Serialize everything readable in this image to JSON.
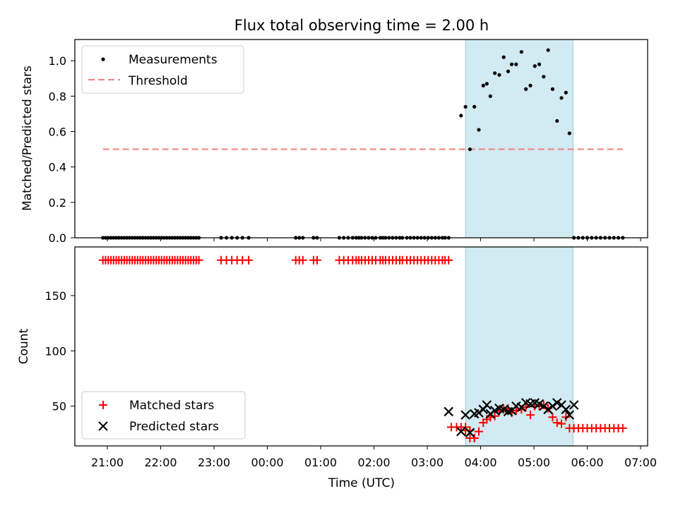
{
  "chart_data": {
    "title": "Flux total observing time = 2.00 h",
    "xlabel": "Time (UTC)",
    "x_ticks": [
      "21:00",
      "22:00",
      "23:00",
      "00:00",
      "01:00",
      "02:00",
      "03:00",
      "04:00",
      "05:00",
      "06:00",
      "07:00"
    ],
    "shaded_interval": {
      "from": "03:43",
      "to": "05:44",
      "color": "#add8e6"
    },
    "panels": [
      {
        "type": "scatter",
        "ylabel": "Matched/Predicted stars",
        "ylim": [
          0,
          1.12
        ],
        "y_ticks": [
          0.0,
          0.2,
          0.4,
          0.6,
          0.8,
          1.0
        ],
        "y_tick_labels": [
          "0.0",
          "0.2",
          "0.4",
          "0.6",
          "0.8",
          "1.0"
        ],
        "legend_position": "upper-left",
        "series": [
          {
            "name": "Measurements",
            "kind": "points",
            "color": "#000000",
            "x": [
              "20:55",
              "20:58",
              "21:01",
              "21:04",
              "21:07",
              "21:10",
              "21:13",
              "21:16",
              "21:19",
              "21:22",
              "21:25",
              "21:28",
              "21:31",
              "21:34",
              "21:37",
              "21:40",
              "21:43",
              "21:46",
              "21:49",
              "21:52",
              "21:55",
              "21:58",
              "22:01",
              "22:04",
              "22:07",
              "22:10",
              "22:13",
              "22:16",
              "22:19",
              "22:22",
              "22:25",
              "22:28",
              "22:31",
              "22:34",
              "22:37",
              "22:40",
              "22:43",
              "23:08",
              "23:14",
              "23:20",
              "23:26",
              "23:32",
              "23:39",
              "00:32",
              "00:36",
              "00:40",
              "00:52",
              "00:56",
              "01:21",
              "01:26",
              "01:31",
              "01:36",
              "01:40",
              "01:43",
              "01:46",
              "01:50",
              "01:54",
              "01:58",
              "02:02",
              "02:07",
              "02:10",
              "02:13",
              "02:17",
              "02:21",
              "02:25",
              "02:29",
              "02:32",
              "02:37",
              "02:41",
              "02:45",
              "02:49",
              "02:53",
              "02:57",
              "03:01",
              "03:05",
              "03:09",
              "03:13",
              "03:17",
              "03:20",
              "03:24",
              "03:38",
              "03:43",
              "03:48",
              "03:53",
              "03:58",
              "04:03",
              "04:07",
              "04:11",
              "04:16",
              "04:21",
              "04:26",
              "04:31",
              "04:35",
              "04:40",
              "04:46",
              "04:51",
              "04:56",
              "05:01",
              "05:06",
              "05:11",
              "05:16",
              "05:21",
              "05:26",
              "05:31",
              "05:36",
              "05:40",
              "05:45",
              "05:50",
              "05:55",
              "06:00",
              "06:05",
              "06:10",
              "06:15",
              "06:20",
              "06:25",
              "06:30",
              "06:35",
              "06:40"
            ],
            "y": [
              0,
              0,
              0,
              0,
              0,
              0,
              0,
              0,
              0,
              0,
              0,
              0,
              0,
              0,
              0,
              0,
              0,
              0,
              0,
              0,
              0,
              0,
              0,
              0,
              0,
              0,
              0,
              0,
              0,
              0,
              0,
              0,
              0,
              0,
              0,
              0,
              0,
              0,
              0,
              0,
              0,
              0,
              0,
              0,
              0,
              0,
              0,
              0,
              0,
              0,
              0,
              0,
              0,
              0,
              0,
              0,
              0,
              0,
              0,
              0,
              0,
              0,
              0,
              0,
              0,
              0,
              0,
              0,
              0,
              0,
              0,
              0,
              0,
              0,
              0,
              0,
              0,
              0,
              0,
              0,
              0.69,
              0.74,
              0.5,
              0.74,
              0.61,
              0.86,
              0.87,
              0.8,
              0.93,
              0.92,
              1.02,
              0.94,
              0.98,
              0.98,
              1.05,
              0.84,
              0.86,
              0.97,
              0.98,
              0.91,
              1.06,
              0.84,
              0.66,
              0.79,
              0.82,
              0.59,
              0,
              0,
              0,
              0,
              0,
              0,
              0,
              0,
              0,
              0,
              0,
              0
            ]
          },
          {
            "name": "Threshold",
            "kind": "dashed-line",
            "color": "#f08080",
            "x": [
              "20:55",
              "06:40"
            ],
            "y": [
              0.5,
              0.5
            ]
          }
        ]
      },
      {
        "type": "scatter",
        "ylabel": "Count",
        "ylim": [
          14,
          194
        ],
        "y_ticks": [
          50,
          100,
          150
        ],
        "y_tick_labels": [
          "50",
          "100",
          "150"
        ],
        "legend_position": "lower-left",
        "series": [
          {
            "name": "Matched stars",
            "marker": "plus",
            "color": "#ff0000",
            "x": [
              "20:55",
              "20:58",
              "21:01",
              "21:04",
              "21:07",
              "21:10",
              "21:13",
              "21:16",
              "21:19",
              "21:22",
              "21:25",
              "21:28",
              "21:31",
              "21:34",
              "21:37",
              "21:40",
              "21:43",
              "21:46",
              "21:49",
              "21:52",
              "21:55",
              "21:58",
              "22:01",
              "22:04",
              "22:07",
              "22:10",
              "22:13",
              "22:16",
              "22:19",
              "22:22",
              "22:25",
              "22:28",
              "22:31",
              "22:34",
              "22:37",
              "22:40",
              "22:43",
              "23:08",
              "23:14",
              "23:20",
              "23:26",
              "23:32",
              "23:39",
              "00:32",
              "00:36",
              "00:40",
              "00:52",
              "00:56",
              "01:21",
              "01:26",
              "01:31",
              "01:36",
              "01:40",
              "01:43",
              "01:46",
              "01:50",
              "01:54",
              "01:58",
              "02:02",
              "02:07",
              "02:10",
              "02:13",
              "02:17",
              "02:21",
              "02:25",
              "02:29",
              "02:32",
              "02:37",
              "02:41",
              "02:45",
              "02:49",
              "02:53",
              "02:57",
              "03:01",
              "03:05",
              "03:09",
              "03:13",
              "03:17",
              "03:20",
              "03:24",
              "03:38",
              "03:43",
              "03:48",
              "03:53",
              "03:58",
              "04:03",
              "04:07",
              "04:11",
              "04:16",
              "04:21",
              "04:26",
              "04:31",
              "04:35",
              "04:40",
              "04:46",
              "04:51",
              "04:56",
              "05:01",
              "05:06",
              "05:11",
              "05:16",
              "05:21",
              "05:26",
              "05:31",
              "05:36",
              "05:40",
              "05:45",
              "05:50",
              "05:55",
              "06:00",
              "06:05",
              "06:10",
              "06:15",
              "06:20",
              "06:25",
              "06:30",
              "06:35",
              "06:40",
              "03:27",
              "03:33",
              "03:43",
              "03:48",
              "03:53"
            ],
            "y": [
              182,
              182,
              182,
              182,
              182,
              182,
              182,
              182,
              182,
              182,
              182,
              182,
              182,
              182,
              182,
              182,
              182,
              182,
              182,
              182,
              182,
              182,
              182,
              182,
              182,
              182,
              182,
              182,
              182,
              182,
              182,
              182,
              182,
              182,
              182,
              182,
              182,
              182,
              182,
              182,
              182,
              182,
              182,
              182,
              182,
              182,
              182,
              182,
              182,
              182,
              182,
              182,
              182,
              182,
              182,
              182,
              182,
              182,
              182,
              182,
              182,
              182,
              182,
              182,
              182,
              182,
              182,
              182,
              182,
              182,
              182,
              182,
              182,
              182,
              182,
              182,
              182,
              182,
              182,
              182,
              31,
              31,
              21,
              21,
              27,
              35,
              38,
              40,
              41,
              45,
              47,
              48,
              44,
              46,
              47,
              49,
              42,
              50,
              50,
              51,
              48,
              40,
              35,
              34,
              40,
              30,
              30,
              30,
              30,
              30,
              30,
              30,
              30,
              30,
              30,
              30,
              30,
              30,
              31,
              31,
              28,
              28,
              21
            ]
          },
          {
            "name": "Predicted stars",
            "marker": "x",
            "color": "#000000",
            "x": [
              "03:24",
              "03:38",
              "03:43",
              "03:48",
              "03:53",
              "03:58",
              "04:03",
              "04:07",
              "04:11",
              "04:16",
              "04:21",
              "04:26",
              "04:31",
              "04:35",
              "04:40",
              "04:46",
              "04:51",
              "04:56",
              "05:01",
              "05:06",
              "05:11",
              "05:16",
              "05:21",
              "05:26",
              "05:31",
              "05:36",
              "05:40",
              "05:45"
            ],
            "y": [
              45,
              27,
              42,
              26,
              43,
              44,
              47,
              51,
              43,
              46,
              48,
              47,
              45,
              46,
              50,
              49,
              53,
              52,
              53,
              52,
              50,
              47,
              50,
              53,
              51,
              47,
              42,
              51
            ]
          }
        ]
      }
    ]
  }
}
